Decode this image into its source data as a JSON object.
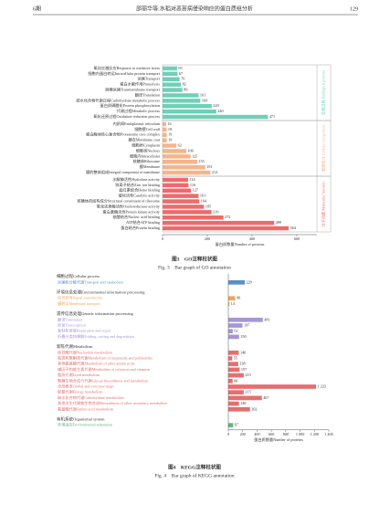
{
  "header": {
    "left": "6期",
    "center": "邵丽华等:水稻对恶苗病侵染响应的蛋白质组分析",
    "right": "129"
  },
  "chart_data": [
    {
      "type": "bar",
      "orientation": "horizontal",
      "xlabel": "蛋白质数量Number of proteins",
      "caption_cn": "图3　GO注释柱状图",
      "caption_en": "Fig. 3　Bar graph of GO annotation",
      "xlim": [
        0,
        690
      ],
      "xticks": [
        0,
        200,
        400,
        600
      ],
      "groups": [
        {
          "name": "生物过程 Biological process",
          "color": "#6fd0b8",
          "categories": [
            "氧化应激反应Response to oxidative stress",
            "细胞内蛋白转运Intracellular protein transport",
            "运输Transport",
            "蛋白水解作用Proteolysis",
            "跨膜运输Transmembrane transport",
            "翻译Translation",
            "碳水化合物代谢过程Carbohydrate metabolic process",
            "蛋白质磷酸化Protein phosphorylation",
            "代谢过程Metabolic process",
            "氧化还原过程Oxidation-reduction process"
          ],
          "values": [
            65,
            67,
            76,
            82,
            89,
            161,
            169,
            220,
            240,
            471
          ]
        },
        {
          "name": "细胞组分 Cellular component",
          "color": "#f6b48a",
          "categories": [
            "内质网Endoplasmic reticulum",
            "细胞壁Cell wall",
            "蛋白酶体核心复合物Proteasome core complex",
            "膜衣Membrane coat",
            "细胞质Cytoplasm",
            "细胞核Nucleus",
            "细胞内Intracellular",
            "核糖体Ribosome",
            "膜Membrane",
            "膜的整体组成Integral component of membrane"
          ],
          "values": [
            16,
            18,
            19,
            19,
            62,
            106,
            125,
            155,
            191,
            214
          ]
        },
        {
          "name": "分子功能 Molecular function",
          "color": "#ee6a6a",
          "categories": [
            "水解酶活性Hydrolase activity",
            "锌离子结合Zinc ion binding",
            "血红素结合Heme binding",
            "催化活性Catalytic activity",
            "核糖体的结构成分Structural constituent of ribosome",
            "氧化还原酶活性Oxidoreductase activity",
            "蛋白激酶活性Protein kinase activity",
            "核酸结合Nucleic acid binding",
            "ATP结合ATP binding",
            "蛋白结合Protein binding"
          ],
          "values": [
            114,
            116,
            127,
            161,
            164,
            185,
            219,
            272,
            499,
            564
          ]
        }
      ]
    },
    {
      "type": "bar",
      "orientation": "horizontal",
      "xlabel": "蛋白质数量Number of proteins",
      "caption_cn": "图4　KEGG注释柱状图",
      "caption_en": "Fig. 4　Bar graph of KEGG annotation",
      "xlim": [
        0,
        1400
      ],
      "xticks": [
        0,
        200,
        400,
        600,
        800,
        {
          "value": 1000,
          "label": "1 000"
        },
        {
          "value": 1200,
          "label": "1 200"
        },
        {
          "value": 1400,
          "label": "1 400"
        }
      ],
      "groups": [
        {
          "name": "细胞过程Cellular process",
          "color": "#5a8fc8",
          "categories": [
            "运输和分解代谢Transport and catabolism"
          ],
          "values": [
            229
          ]
        },
        {
          "name": "环境信息处理Environmental information processing",
          "color": "#f2a65a",
          "categories": [
            "信号转导Signal transduction",
            "膜转运Membrane transport"
          ],
          "values": [
            96,
            14
          ]
        },
        {
          "name": "遗传信息处理Genetic information processing",
          "color": "#a698cf",
          "categories": [
            "翻译Translation",
            "转录Transcription",
            "复制和修复Replication and repair",
            "折叠分类和降解Folding, sorting and degradation"
          ],
          "values": [
            481,
            197,
            62,
            150
          ]
        },
        {
          "name": "新陈代谢Metabolism",
          "color": "#e46f6f",
          "categories": [
            "核苷酸代谢Nucleotide metabolism",
            "萜类和聚酮类代谢Metabolism of terpenoids and polyketides",
            "其他氨基酸代谢Metabolism of other amino acids",
            "辅因子和维生素代谢Metabolism of cofactors and vitamins",
            "脂质代谢Lipid metabolism",
            "聚糖生物合成与代谢Glycan biosynthesis and metabolism",
            "全局概览Global and overview maps",
            "能量代谢Energy metabolism",
            "碳水化合物代谢Carbohydrate metabolism",
            "其他次生代谢物生物合成Biosynthesis of other secondary metabolites",
            "氨基酸代谢Amino acid metabolism"
          ],
          "values": [
            146,
            55,
            138,
            157,
            215,
            60,
            1223,
            215,
            467,
            148,
            302
          ],
          "value_labels": [
            "146",
            "55",
            "138",
            "157",
            "215",
            "60",
            "1 223",
            "215",
            "467",
            "148",
            "302"
          ]
        },
        {
          "name": "有机系统Organismal system",
          "color": "#62b57f",
          "categories": [
            "环境适应Environmental adaptation"
          ],
          "values": [
            67
          ]
        }
      ]
    }
  ]
}
